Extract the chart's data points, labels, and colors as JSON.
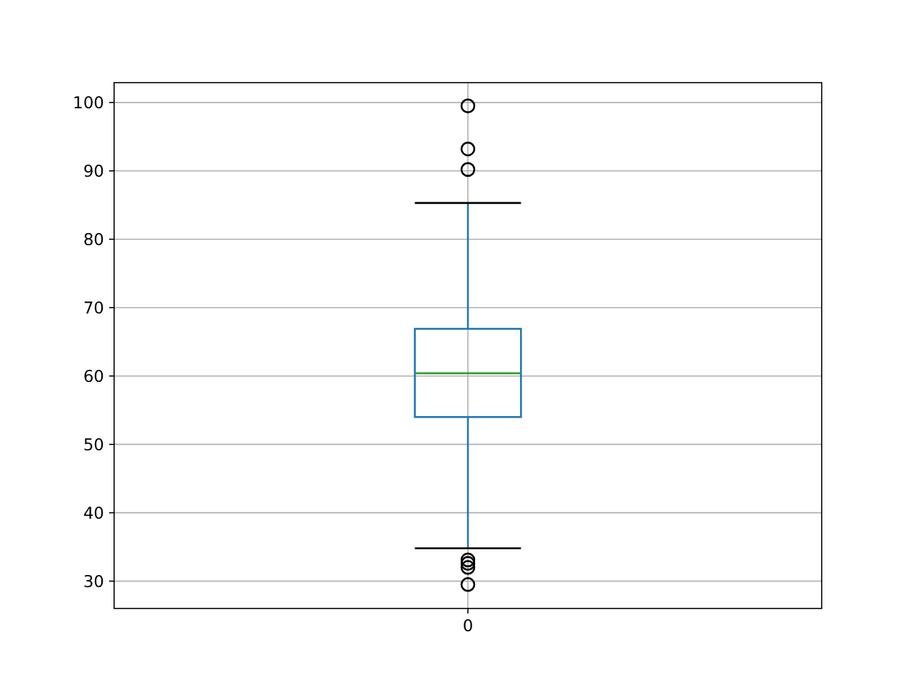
{
  "chart_data": {
    "type": "box",
    "categories": [
      "0"
    ],
    "boxes": [
      {
        "low": 34.8,
        "q1": 54.0,
        "median": 60.4,
        "q3": 66.9,
        "high": 85.3,
        "outliers": [
          99.5,
          93.2,
          90.2,
          33.1,
          32.6,
          32.0,
          29.5
        ]
      }
    ],
    "ylim": [
      26.0,
      102.9
    ],
    "yticks": [
      30,
      40,
      50,
      60,
      70,
      80,
      90,
      100
    ],
    "grid": true,
    "color": "#1f77b4"
  }
}
